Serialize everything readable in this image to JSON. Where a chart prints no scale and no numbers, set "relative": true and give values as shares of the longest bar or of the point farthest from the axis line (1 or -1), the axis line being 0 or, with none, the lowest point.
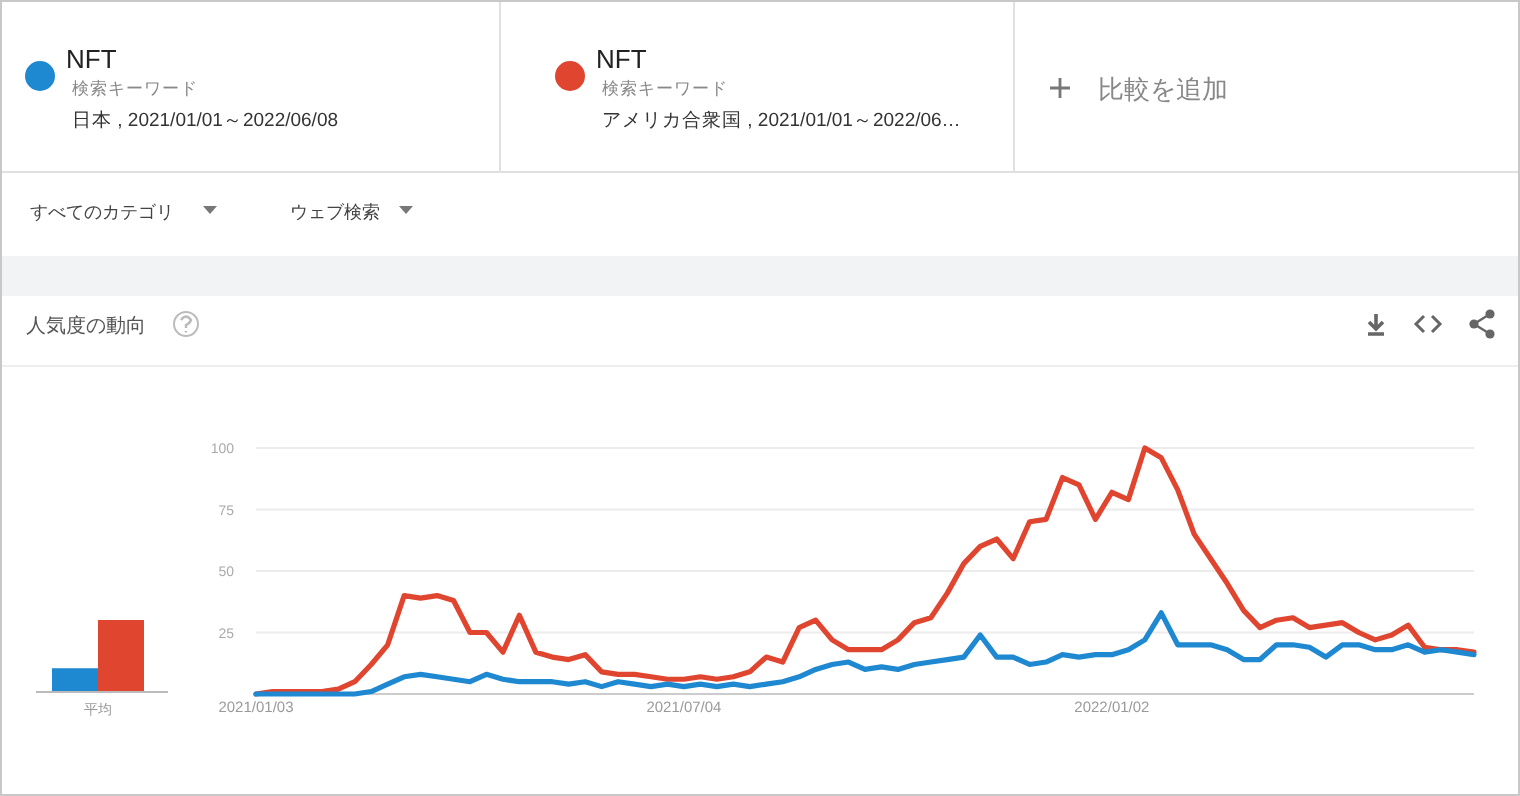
{
  "chart_data": [
    {
      "type": "bar",
      "categories": [
        "平均"
      ],
      "relative": true,
      "series": [
        {
          "color": "#1e88d0",
          "values": [
            0.33
          ]
        },
        {
          "color": "#e0452f",
          "values": [
            1
          ]
        }
      ]
    },
    {
      "type": "line",
      "title": "人気度の動向",
      "legend": "top",
      "grid": "y",
      "annotations": [
        "検索キーワード",
        "日本 , 2021/01/01～2022/06/08",
        "検索キーワード",
        "アメリカ合衆国 , 2021/01/01～2022/06…",
        "比較を追加",
        "すべてのカテゴリ",
        "ウェブ検索"
      ],
      "x": [
        "2021-01-03",
        "2021-01-10",
        "2021-01-17",
        "2021-01-24",
        "2021-01-31",
        "2021-02-07",
        "2021-02-14",
        "2021-02-21",
        "2021-02-28",
        "2021-03-07",
        "2021-03-14",
        "2021-03-21",
        "2021-03-28",
        "2021-04-04",
        "2021-04-11",
        "2021-04-18",
        "2021-04-25",
        "2021-05-02",
        "2021-05-09",
        "2021-05-16",
        "2021-05-23",
        "2021-05-30",
        "2021-06-06",
        "2021-06-13",
        "2021-06-20",
        "2021-06-27",
        "2021-07-04",
        "2021-07-11",
        "2021-07-18",
        "2021-07-25",
        "2021-08-01",
        "2021-08-08",
        "2021-08-15",
        "2021-08-22",
        "2021-08-29",
        "2021-09-05",
        "2021-09-12",
        "2021-09-19",
        "2021-09-26",
        "2021-10-03",
        "2021-10-10",
        "2021-10-17",
        "2021-10-24",
        "2021-10-31",
        "2021-11-07",
        "2021-11-14",
        "2021-11-21",
        "2021-11-28",
        "2021-12-05",
        "2021-12-12",
        "2021-12-19",
        "2021-12-26",
        "2022-01-02",
        "2022-01-09",
        "2022-01-16",
        "2022-01-23",
        "2022-01-30",
        "2022-02-06",
        "2022-02-13",
        "2022-02-20",
        "2022-02-27",
        "2022-03-06",
        "2022-03-13",
        "2022-03-20",
        "2022-03-27",
        "2022-04-03",
        "2022-04-10",
        "2022-04-17",
        "2022-04-24",
        "2022-05-01",
        "2022-05-08",
        "2022-05-15",
        "2022-05-22",
        "2022-05-29",
        "2022-06-05"
      ],
      "xlim": [
        "2021-01-03",
        "2022-06-05"
      ],
      "xticks": [
        {
          "value": "2021-01-03",
          "label": "2021/01/03"
        },
        {
          "value": "2021-07-04",
          "label": "2021/07/04"
        },
        {
          "value": "2022-01-02",
          "label": "2022/01/02"
        }
      ],
      "ylim": [
        0,
        100
      ],
      "yticks": [
        {
          "value": 0,
          "label": null
        },
        25,
        50,
        75,
        100
      ],
      "series": [
        {
          "name": "NFT",
          "color": "#1e88d0",
          "values": [
            0,
            0,
            0,
            0,
            0,
            0,
            0,
            1,
            4,
            7,
            8,
            7,
            6,
            5,
            8,
            6,
            5,
            5,
            5,
            4,
            5,
            3,
            5,
            4,
            3,
            4,
            3,
            4,
            3,
            4,
            3,
            4,
            5,
            7,
            10,
            12,
            13,
            10,
            11,
            10,
            12,
            13,
            14,
            15,
            24,
            15,
            15,
            12,
            13,
            16,
            15,
            16,
            16,
            18,
            22,
            33,
            20,
            20,
            20,
            18,
            14,
            14,
            20,
            20,
            19,
            15,
            20,
            20,
            18,
            18,
            20,
            17,
            18,
            17,
            16
          ]
        },
        {
          "name": "NFT",
          "color": "#e0452f",
          "values": [
            0,
            1,
            1,
            1,
            1,
            2,
            5,
            12,
            20,
            40,
            39,
            40,
            38,
            25,
            25,
            17,
            32,
            17,
            15,
            14,
            16,
            9,
            8,
            8,
            7,
            6,
            6,
            7,
            6,
            7,
            9,
            15,
            13,
            27,
            30,
            22,
            18,
            18,
            18,
            22,
            29,
            31,
            41,
            53,
            60,
            63,
            55,
            70,
            71,
            88,
            85,
            71,
            82,
            79,
            100,
            96,
            83,
            65,
            55,
            45,
            34,
            27,
            30,
            31,
            27,
            28,
            29,
            25,
            22,
            24,
            28,
            19,
            18,
            18,
            17
          ]
        }
      ]
    }
  ]
}
